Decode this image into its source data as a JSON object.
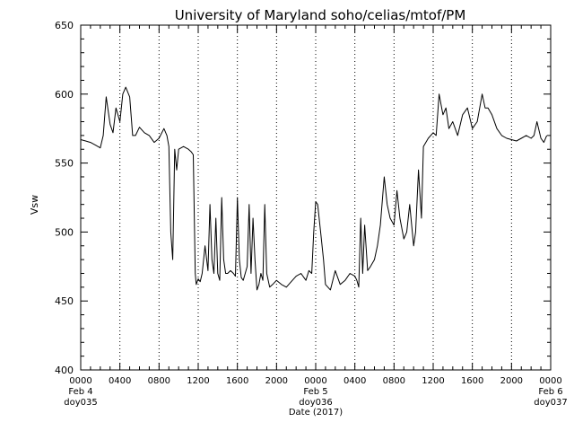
{
  "chart_data": {
    "type": "line",
    "title": "University of Maryland  soho/celias/mtof/PM",
    "ylabel": "Vsw",
    "xlabel": "Date (2017)",
    "ylim": [
      400,
      650
    ],
    "y_ticks": [
      400,
      450,
      500,
      550,
      600,
      650
    ],
    "xlim_hours": [
      0,
      48
    ],
    "x_ticks": [
      {
        "hour": 0,
        "label": "0000"
      },
      {
        "hour": 4,
        "label": "0400"
      },
      {
        "hour": 8,
        "label": "0800"
      },
      {
        "hour": 12,
        "label": "1200"
      },
      {
        "hour": 16,
        "label": "1600"
      },
      {
        "hour": 20,
        "label": "2000"
      },
      {
        "hour": 24,
        "label": "0000"
      },
      {
        "hour": 28,
        "label": "0400"
      },
      {
        "hour": 32,
        "label": "0800"
      },
      {
        "hour": 36,
        "label": "1200"
      },
      {
        "hour": 40,
        "label": "1600"
      },
      {
        "hour": 44,
        "label": "2000"
      },
      {
        "hour": 48,
        "label": "0000"
      }
    ],
    "date_labels": [
      {
        "hour": 0,
        "date": "Feb  4",
        "doy": "doy035"
      },
      {
        "hour": 24,
        "date": "Feb  5",
        "doy": "doy036"
      },
      {
        "hour": 48,
        "date": "Feb  6",
        "doy": "doy037"
      }
    ],
    "grid": "dotted vertical lines at 4-hour ticks",
    "series": [
      {
        "color": "#000000",
        "x": [
          0,
          0.5,
          1,
          1.5,
          2,
          2.3,
          2.6,
          3,
          3.3,
          3.6,
          4,
          4.3,
          4.6,
          5,
          5.3,
          5.6,
          6,
          6.5,
          7,
          7.5,
          8,
          8.5,
          8.8,
          9,
          9.2,
          9.4,
          9.6,
          9.8,
          10,
          10.5,
          11,
          11.3,
          11.5,
          11.7,
          11.8,
          12,
          12.2,
          12.4,
          12.7,
          13,
          13.2,
          13.4,
          13.6,
          13.8,
          14,
          14.2,
          14.4,
          14.6,
          14.8,
          15,
          15.3,
          15.6,
          15.8,
          16,
          16.2,
          16.4,
          16.6,
          16.8,
          17,
          17.2,
          17.4,
          17.6,
          17.8,
          18,
          18.2,
          18.4,
          18.6,
          18.8,
          19,
          19.3,
          19.6,
          20,
          20.5,
          21,
          21.5,
          22,
          22.5,
          23,
          23.3,
          23.6,
          23.8,
          24,
          24.2,
          24.5,
          24.8,
          25,
          25.5,
          26,
          26.5,
          27,
          27.5,
          28,
          28.2,
          28.4,
          28.6,
          28.8,
          29,
          29.3,
          29.6,
          30,
          30.3,
          30.6,
          31,
          31.3,
          31.6,
          32,
          32.3,
          32.6,
          33,
          33.3,
          33.6,
          34,
          34.2,
          34.5,
          34.8,
          35,
          35.5,
          36,
          36.3,
          36.6,
          37,
          37.3,
          37.6,
          38,
          38.5,
          39,
          39.5,
          40,
          40.5,
          41,
          41.3,
          41.6,
          42,
          42.5,
          43,
          43.5,
          44,
          44.5,
          45,
          45.5,
          46,
          46.3,
          46.6,
          47,
          47.3,
          47.6
        ],
        "values": [
          567,
          566,
          565,
          563,
          561,
          570,
          598,
          578,
          572,
          590,
          580,
          600,
          605,
          598,
          570,
          570,
          576,
          572,
          570,
          565,
          568,
          575,
          570,
          562,
          500,
          480,
          560,
          545,
          560,
          562,
          560,
          558,
          556,
          470,
          462,
          466,
          464,
          470,
          490,
          472,
          520,
          480,
          470,
          510,
          470,
          465,
          525,
          480,
          470,
          470,
          472,
          470,
          468,
          525,
          480,
          467,
          465,
          470,
          475,
          520,
          470,
          510,
          480,
          458,
          462,
          470,
          465,
          520,
          470,
          460,
          462,
          465,
          462,
          460,
          464,
          468,
          470,
          465,
          472,
          470,
          500,
          522,
          520,
          500,
          480,
          462,
          458,
          472,
          462,
          465,
          470,
          468,
          465,
          460,
          510,
          470,
          505,
          472,
          475,
          480,
          490,
          505,
          540,
          520,
          510,
          505,
          530,
          510,
          495,
          500,
          520,
          490,
          500,
          545,
          510,
          562,
          568,
          572,
          570,
          600,
          585,
          590,
          575,
          580,
          570,
          585,
          590,
          575,
          580,
          600,
          590,
          590,
          585,
          575,
          570,
          568,
          567,
          566,
          568,
          570,
          568,
          570,
          580,
          568,
          565,
          570
        ]
      }
    ]
  }
}
